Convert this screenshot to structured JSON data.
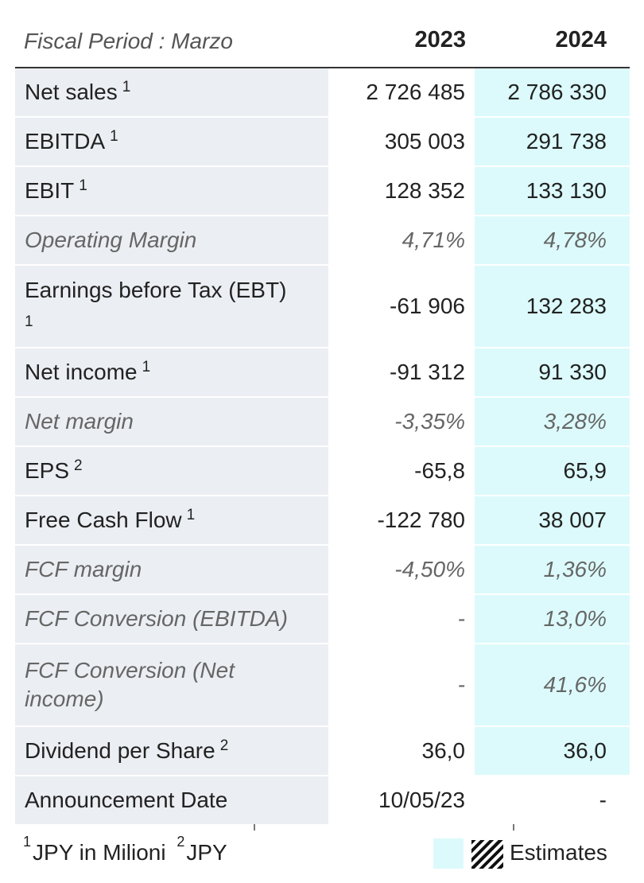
{
  "header": {
    "period_label": "Fiscal Period : Marzo",
    "years": [
      "2023",
      "2024"
    ]
  },
  "rows": [
    {
      "label": "Net sales",
      "note": "1",
      "v2023": "2 726 485",
      "v2024": "2 786 330"
    },
    {
      "label": "EBITDA",
      "note": "1",
      "v2023": "305 003",
      "v2024": "291 738"
    },
    {
      "label": "EBIT",
      "note": "1",
      "v2023": "128 352",
      "v2024": "133 130"
    },
    {
      "label": "Operating Margin",
      "note": "",
      "v2023": "4,71%",
      "v2024": "4,78%"
    },
    {
      "label": "Earnings before Tax (EBT)",
      "note": "1",
      "v2023": "-61 906",
      "v2024": "132 283"
    },
    {
      "label": "Net income",
      "note": "1",
      "v2023": "-91 312",
      "v2024": "91 330"
    },
    {
      "label": "Net margin",
      "note": "",
      "v2023": "-3,35%",
      "v2024": "3,28%"
    },
    {
      "label": "EPS",
      "note": "2",
      "v2023": "-65,8",
      "v2024": "65,9"
    },
    {
      "label": "Free Cash Flow",
      "note": "1",
      "v2023": "-122 780",
      "v2024": "38 007"
    },
    {
      "label": "FCF margin",
      "note": "",
      "v2023": "-4,50%",
      "v2024": "1,36%"
    },
    {
      "label": "FCF Conversion (EBITDA)",
      "note": "",
      "v2023": "-",
      "v2024": "13,0%"
    },
    {
      "label": "FCF Conversion (Net income)",
      "note": "",
      "v2023": "-",
      "v2024": "41,6%"
    },
    {
      "label": "Dividend per Share",
      "note": "2",
      "v2023": "36,0",
      "v2024": "36,0"
    },
    {
      "label": "Announcement Date",
      "note": "",
      "v2023": "10/05/23",
      "v2024": "-"
    }
  ],
  "footer": {
    "note1_marker": "1",
    "note1_text": "JPY in Milioni",
    "note2_marker": "2",
    "note2_text": "JPY",
    "legend_label": "Estimates"
  },
  "colors": {
    "label_bg": "#ebeef2",
    "estimate_bg": "#dcfafb",
    "header_rule": "#333333"
  }
}
